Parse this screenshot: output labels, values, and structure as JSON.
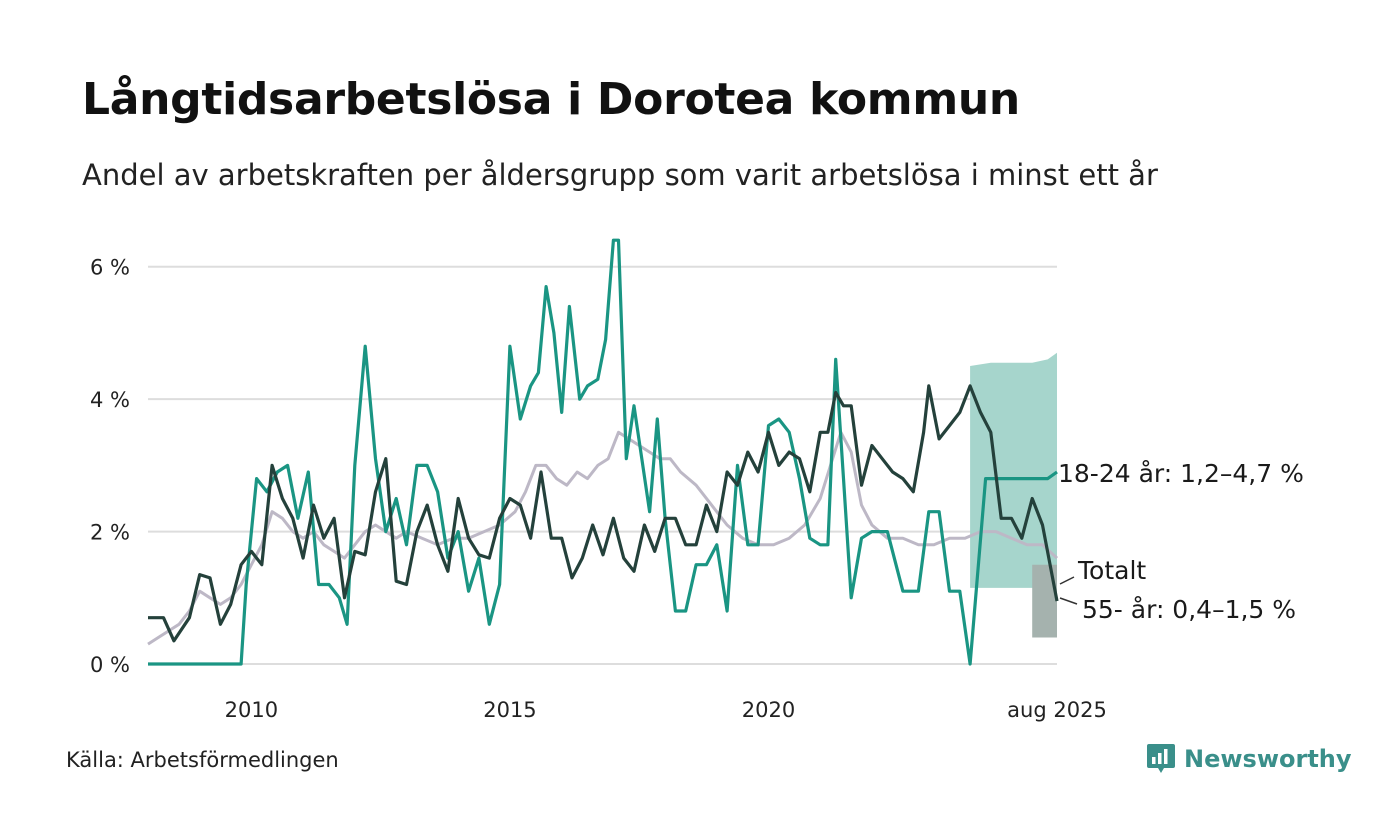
{
  "title": "Långtidsarbetslösa i Dorotea kommun",
  "subtitle": "Andel av arbetskraften per åldersgrupp som varit arbetslösa i minst ett år",
  "source": "Källa: Arbetsförmedlingen",
  "brand": "Newsworthy",
  "colors": {
    "youth": "#1a9583",
    "youth_band": "#a6d5cc",
    "senior": "#24413b",
    "senior_band": "#a5b2ae",
    "total": "#bdb8c6",
    "grid": "#dddddd"
  },
  "chart_data": {
    "type": "line",
    "x_unit": "year",
    "xlim": [
      2008.0,
      2025.58
    ],
    "ylim": [
      0,
      6.6
    ],
    "grid": true,
    "y_ticks": [
      {
        "value": 0,
        "label": "0 %"
      },
      {
        "value": 2,
        "label": "2 %"
      },
      {
        "value": 4,
        "label": "4 %"
      },
      {
        "value": 6,
        "label": "6 %"
      }
    ],
    "x_ticks": [
      {
        "value": 2010,
        "label": "2010"
      },
      {
        "value": 2015,
        "label": "2015"
      },
      {
        "value": 2020,
        "label": "2020"
      },
      {
        "value": 2025.58,
        "label": "aug 2025"
      }
    ],
    "series": [
      {
        "key": "total",
        "name": "Totalt",
        "label": "Totalt",
        "x": [
          2008.0,
          2008.2,
          2008.4,
          2008.6,
          2008.8,
          2009.0,
          2009.2,
          2009.4,
          2009.6,
          2009.8,
          2010.0,
          2010.2,
          2010.4,
          2010.6,
          2010.8,
          2011.0,
          2011.2,
          2011.4,
          2011.6,
          2011.8,
          2012.0,
          2012.2,
          2012.4,
          2012.6,
          2012.8,
          2013.0,
          2013.3,
          2013.6,
          2013.9,
          2014.2,
          2014.5,
          2014.8,
          2015.1,
          2015.3,
          2015.5,
          2015.7,
          2015.9,
          2016.1,
          2016.3,
          2016.5,
          2016.7,
          2016.9,
          2017.1,
          2017.3,
          2017.5,
          2017.7,
          2017.9,
          2018.1,
          2018.3,
          2018.6,
          2018.9,
          2019.2,
          2019.5,
          2019.8,
          2020.1,
          2020.4,
          2020.7,
          2021.0,
          2021.2,
          2021.4,
          2021.6,
          2021.8,
          2022.0,
          2022.3,
          2022.6,
          2022.9,
          2023.2,
          2023.5,
          2023.8,
          2024.1,
          2024.4,
          2024.7,
          2025.0,
          2025.3,
          2025.58
        ],
        "y": [
          0.3,
          0.4,
          0.5,
          0.6,
          0.8,
          1.1,
          1.0,
          0.9,
          1.0,
          1.2,
          1.5,
          1.8,
          2.3,
          2.2,
          2.0,
          1.9,
          2.0,
          1.8,
          1.7,
          1.6,
          1.8,
          2.0,
          2.1,
          2.0,
          1.9,
          2.0,
          1.9,
          1.8,
          1.9,
          1.9,
          2.0,
          2.1,
          2.3,
          2.6,
          3.0,
          3.0,
          2.8,
          2.7,
          2.9,
          2.8,
          3.0,
          3.1,
          3.5,
          3.4,
          3.3,
          3.2,
          3.1,
          3.1,
          2.9,
          2.7,
          2.4,
          2.1,
          1.9,
          1.8,
          1.8,
          1.9,
          2.1,
          2.5,
          3.0,
          3.5,
          3.2,
          2.4,
          2.1,
          1.9,
          1.9,
          1.8,
          1.8,
          1.9,
          1.9,
          2.0,
          2.0,
          1.9,
          1.8,
          1.8,
          1.6
        ]
      },
      {
        "key": "youth",
        "name": "18-24 år",
        "label": "18-24 år: 1,2–4,7 %",
        "x": [
          2008.0,
          2008.5,
          2009.0,
          2009.5,
          2009.8,
          2009.9,
          2010.1,
          2010.3,
          2010.5,
          2010.7,
          2010.9,
          2011.1,
          2011.3,
          2011.5,
          2011.7,
          2011.85,
          2012.0,
          2012.2,
          2012.4,
          2012.6,
          2012.8,
          2013.0,
          2013.2,
          2013.4,
          2013.6,
          2013.8,
          2014.0,
          2014.2,
          2014.4,
          2014.6,
          2014.8,
          2015.0,
          2015.2,
          2015.4,
          2015.55,
          2015.7,
          2015.85,
          2016.0,
          2016.15,
          2016.35,
          2016.5,
          2016.7,
          2016.85,
          2017.0,
          2017.1,
          2017.25,
          2017.4,
          2017.55,
          2017.7,
          2017.85,
          2018.0,
          2018.2,
          2018.4,
          2018.6,
          2018.8,
          2019.0,
          2019.2,
          2019.4,
          2019.6,
          2019.8,
          2020.0,
          2020.2,
          2020.4,
          2020.6,
          2020.8,
          2021.0,
          2021.15,
          2021.3,
          2021.45,
          2021.6,
          2021.8,
          2022.0,
          2022.3,
          2022.6,
          2022.9,
          2023.1,
          2023.3,
          2023.5,
          2023.7,
          2023.9,
          2024.2,
          2024.5,
          2024.8,
          2025.1,
          2025.4,
          2025.58
        ],
        "y": [
          0,
          0,
          0,
          0,
          0,
          1.2,
          2.8,
          2.6,
          2.9,
          3.0,
          2.2,
          2.9,
          1.2,
          1.2,
          1.0,
          0.6,
          3.0,
          4.8,
          3.1,
          2.0,
          2.5,
          1.8,
          3.0,
          3.0,
          2.6,
          1.6,
          2.0,
          1.1,
          1.6,
          0.6,
          1.2,
          4.8,
          3.7,
          4.2,
          4.4,
          5.7,
          5.0,
          3.8,
          5.4,
          4.0,
          4.2,
          4.3,
          4.9,
          6.4,
          6.4,
          3.1,
          3.9,
          3.1,
          2.3,
          3.7,
          2.2,
          0.8,
          0.8,
          1.5,
          1.5,
          1.8,
          0.8,
          3.0,
          1.8,
          1.8,
          3.6,
          3.7,
          3.5,
          2.8,
          1.9,
          1.8,
          1.8,
          4.6,
          2.8,
          1.0,
          1.9,
          2.0,
          2.0,
          1.1,
          1.1,
          2.3,
          2.3,
          1.1,
          1.1,
          0,
          2.8,
          2.8,
          2.8,
          2.8,
          2.8,
          2.9
        ],
        "band": {
          "x": [
            2023.9,
            2024.3,
            2024.7,
            2025.1,
            2025.4,
            2025.58
          ],
          "low": [
            1.15,
            1.15,
            1.15,
            1.15,
            1.2,
            1.2
          ],
          "high": [
            4.5,
            4.55,
            4.55,
            4.55,
            4.6,
            4.7
          ]
        }
      },
      {
        "key": "senior",
        "name": "55- år",
        "label": "55- år: 0,4–1,5 %",
        "x": [
          2008.0,
          2008.3,
          2008.5,
          2008.8,
          2009.0,
          2009.2,
          2009.4,
          2009.6,
          2009.8,
          2010.0,
          2010.2,
          2010.4,
          2010.6,
          2010.8,
          2011.0,
          2011.2,
          2011.4,
          2011.6,
          2011.8,
          2012.0,
          2012.2,
          2012.4,
          2012.6,
          2012.8,
          2013.0,
          2013.2,
          2013.4,
          2013.6,
          2013.8,
          2014.0,
          2014.2,
          2014.4,
          2014.6,
          2014.8,
          2015.0,
          2015.2,
          2015.4,
          2015.6,
          2015.8,
          2016.0,
          2016.2,
          2016.4,
          2016.6,
          2016.8,
          2017.0,
          2017.2,
          2017.4,
          2017.6,
          2017.8,
          2018.0,
          2018.2,
          2018.4,
          2018.6,
          2018.8,
          2019.0,
          2019.2,
          2019.4,
          2019.6,
          2019.8,
          2020.0,
          2020.2,
          2020.4,
          2020.6,
          2020.8,
          2021.0,
          2021.15,
          2021.3,
          2021.45,
          2021.6,
          2021.8,
          2022.0,
          2022.2,
          2022.4,
          2022.6,
          2022.8,
          2023.0,
          2023.1,
          2023.3,
          2023.5,
          2023.7,
          2023.9,
          2024.1,
          2024.3,
          2024.5,
          2024.7,
          2024.9,
          2025.1,
          2025.3,
          2025.58
        ],
        "y": [
          0.7,
          0.7,
          0.35,
          0.7,
          1.35,
          1.3,
          0.6,
          0.9,
          1.5,
          1.7,
          1.5,
          3.0,
          2.5,
          2.2,
          1.6,
          2.4,
          1.9,
          2.2,
          1.0,
          1.7,
          1.65,
          2.6,
          3.1,
          1.25,
          1.2,
          2.0,
          2.4,
          1.8,
          1.4,
          2.5,
          1.9,
          1.65,
          1.6,
          2.2,
          2.5,
          2.4,
          1.9,
          2.9,
          1.9,
          1.9,
          1.3,
          1.6,
          2.1,
          1.65,
          2.2,
          1.6,
          1.4,
          2.1,
          1.7,
          2.2,
          2.2,
          1.8,
          1.8,
          2.4,
          2.0,
          2.9,
          2.7,
          3.2,
          2.9,
          3.5,
          3.0,
          3.2,
          3.1,
          2.6,
          3.5,
          3.5,
          4.1,
          3.9,
          3.9,
          2.7,
          3.3,
          3.1,
          2.9,
          2.8,
          2.6,
          3.5,
          4.2,
          3.4,
          3.6,
          3.8,
          4.2,
          3.8,
          3.5,
          2.2,
          2.2,
          1.9,
          2.5,
          2.1,
          0.95
        ],
        "band": {
          "x": [
            2025.1,
            2025.3,
            2025.58
          ],
          "low": [
            0.4,
            0.4,
            0.4
          ],
          "high": [
            1.5,
            1.5,
            1.5
          ]
        }
      }
    ]
  }
}
